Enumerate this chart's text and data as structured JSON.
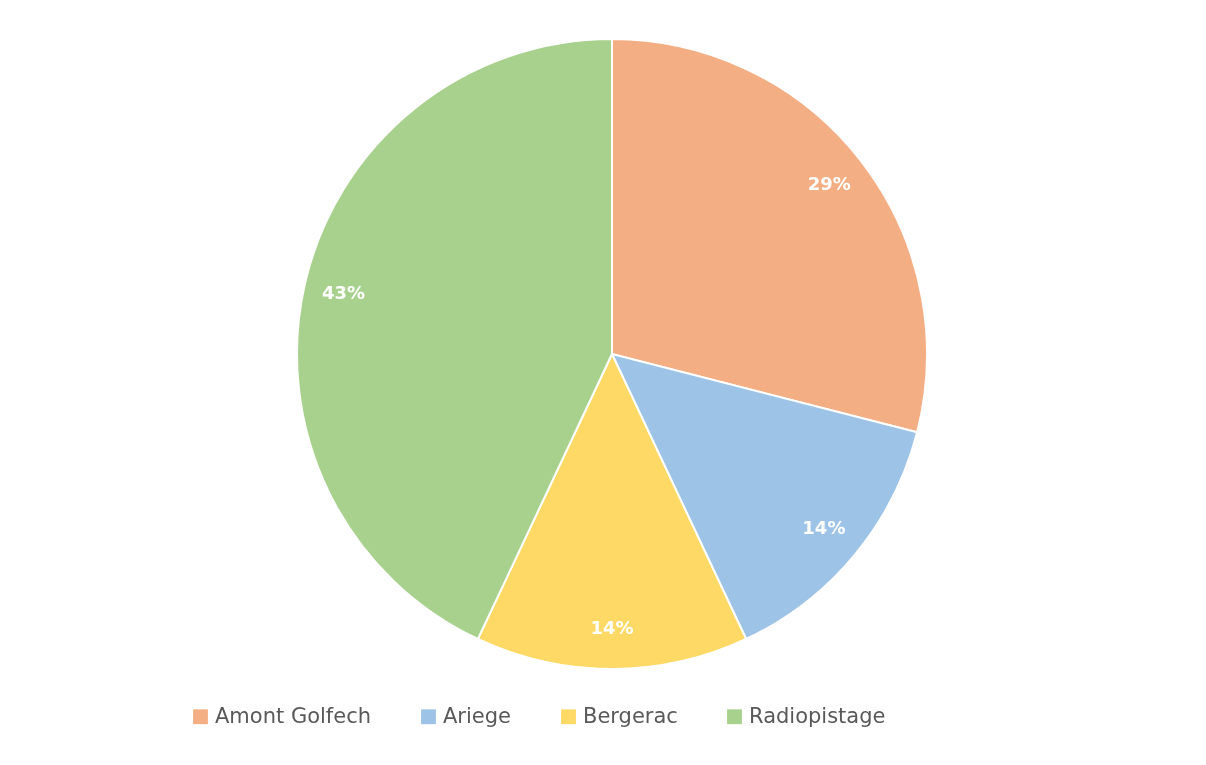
{
  "chart_data": {
    "type": "pie",
    "categories": [
      "Amont Golfech",
      "Ariege",
      "Bergerac",
      "Radiopistage"
    ],
    "values": [
      29,
      14,
      14,
      43
    ],
    "colors": [
      "#f4ae84",
      "#9dc3e6",
      "#ffd966",
      "#a9d18e"
    ],
    "value_labels": [
      "29%",
      "14%",
      "14%",
      "43%"
    ],
    "legend": "bottom"
  }
}
